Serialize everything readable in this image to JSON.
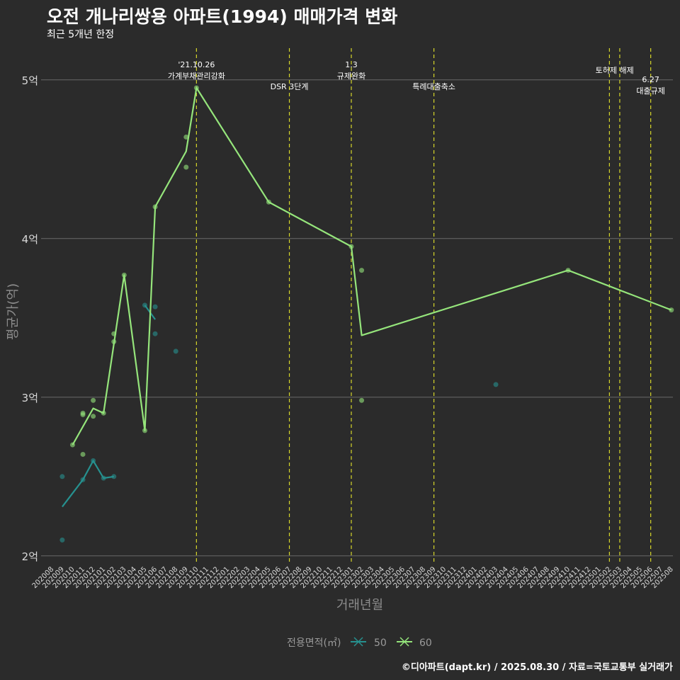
{
  "header": {
    "title": "오전 개나리쌍용 아파트(1994) 매매가격 변화",
    "subtitle": "최근 5개년 한정"
  },
  "caption": "©디아파트(dapt.kr) / 2025.08.30 / 자료=국토교통부 실거래가",
  "colors": {
    "background": "#2b2b2b",
    "grid": "#6a6a6a",
    "series_50": "#26918f",
    "series_60": "#95e57b",
    "vline": "#d6d62a"
  },
  "chart_data": {
    "type": "line",
    "xlabel": "거래년월",
    "ylabel": "평균가(억)",
    "ylim": [
      1.95,
      5.2
    ],
    "y_ticks": [
      {
        "v": 2,
        "label": "2억"
      },
      {
        "v": 3,
        "label": "3억"
      },
      {
        "v": 4,
        "label": "4억"
      },
      {
        "v": 5,
        "label": "5억"
      }
    ],
    "x_categories": [
      "202008",
      "202009",
      "202010",
      "202011",
      "202012",
      "202101",
      "202102",
      "202103",
      "202104",
      "202105",
      "202106",
      "202107",
      "202108",
      "202109",
      "202110",
      "202111",
      "202112",
      "202201",
      "202202",
      "202203",
      "202204",
      "202205",
      "202206",
      "202207",
      "202208",
      "202209",
      "202210",
      "202211",
      "202212",
      "202301",
      "202302",
      "202303",
      "202304",
      "202305",
      "202306",
      "202307",
      "202308",
      "202309",
      "202310",
      "202311",
      "202312",
      "202401",
      "202402",
      "202403",
      "202404",
      "202405",
      "202406",
      "202407",
      "202408",
      "202409",
      "202410",
      "202411",
      "202412",
      "202501",
      "202502",
      "202503",
      "202504",
      "202505",
      "202506",
      "202507",
      "202508"
    ],
    "legend_title": "전용면적(㎡)",
    "series": [
      {
        "name": "50",
        "color": "#26918f",
        "line": [
          [
            "202009",
            2.31
          ],
          [
            "202011",
            2.48
          ],
          [
            "202012",
            2.6
          ],
          [
            "202101",
            2.49
          ],
          [
            "202102",
            2.5
          ]
        ],
        "line2": [
          [
            "202105",
            3.58
          ],
          [
            "202106",
            3.49
          ]
        ],
        "points": [
          [
            "202009",
            2.5
          ],
          [
            "202009",
            2.1
          ],
          [
            "202011",
            2.48
          ],
          [
            "202012",
            2.6
          ],
          [
            "202101",
            2.49
          ],
          [
            "202102",
            2.5
          ],
          [
            "202105",
            3.58
          ],
          [
            "202106",
            3.57
          ],
          [
            "202106",
            3.4
          ],
          [
            "202108",
            3.29
          ],
          [
            "202403",
            3.08
          ]
        ]
      },
      {
        "name": "60",
        "color": "#95e57b",
        "line": [
          [
            "202010",
            2.7
          ],
          [
            "202012",
            2.93
          ],
          [
            "202101",
            2.9
          ],
          [
            "202103",
            3.77
          ],
          [
            "202105",
            2.79
          ],
          [
            "202106",
            4.2
          ],
          [
            "202109",
            4.55
          ],
          [
            "202110",
            4.95
          ],
          [
            "202205",
            4.23
          ],
          [
            "202301",
            3.95
          ],
          [
            "202302",
            3.39
          ],
          [
            "202410",
            3.8
          ],
          [
            "202508",
            3.55
          ]
        ],
        "points": [
          [
            "202010",
            2.7
          ],
          [
            "202011",
            2.89
          ],
          [
            "202011",
            2.9
          ],
          [
            "202011",
            2.64
          ],
          [
            "202012",
            2.98
          ],
          [
            "202012",
            2.88
          ],
          [
            "202101",
            2.9
          ],
          [
            "202102",
            3.4
          ],
          [
            "202102",
            3.35
          ],
          [
            "202103",
            3.77
          ],
          [
            "202105",
            2.79
          ],
          [
            "202106",
            4.2
          ],
          [
            "202109",
            4.64
          ],
          [
            "202109",
            4.45
          ],
          [
            "202110",
            4.95
          ],
          [
            "202205",
            4.23
          ],
          [
            "202301",
            3.95
          ],
          [
            "202302",
            3.8
          ],
          [
            "202302",
            2.98
          ],
          [
            "202410",
            3.8
          ],
          [
            "202508",
            3.55
          ]
        ]
      }
    ],
    "vlines": [
      {
        "x": "202110",
        "label_lines": [
          "'21.10.26",
          "가계부채관리강화"
        ],
        "level": "high"
      },
      {
        "x": "202207",
        "label_lines": [
          "DSR 3단계"
        ],
        "level": "low"
      },
      {
        "x": "202301",
        "label_lines": [
          "1.3",
          "규제완화"
        ],
        "level": "high"
      },
      {
        "x": "202309",
        "label_lines": [
          "특례대출축소"
        ],
        "level": "low"
      },
      {
        "x": "202502",
        "label_lines": [
          "토허제 해제"
        ],
        "level": "mid",
        "anchor": "202502.5"
      },
      {
        "x": "202503",
        "label_lines": [],
        "level": "mid"
      },
      {
        "x": "202506",
        "label_lines": [
          "6.27",
          "대출규제"
        ],
        "level": "low"
      }
    ]
  }
}
